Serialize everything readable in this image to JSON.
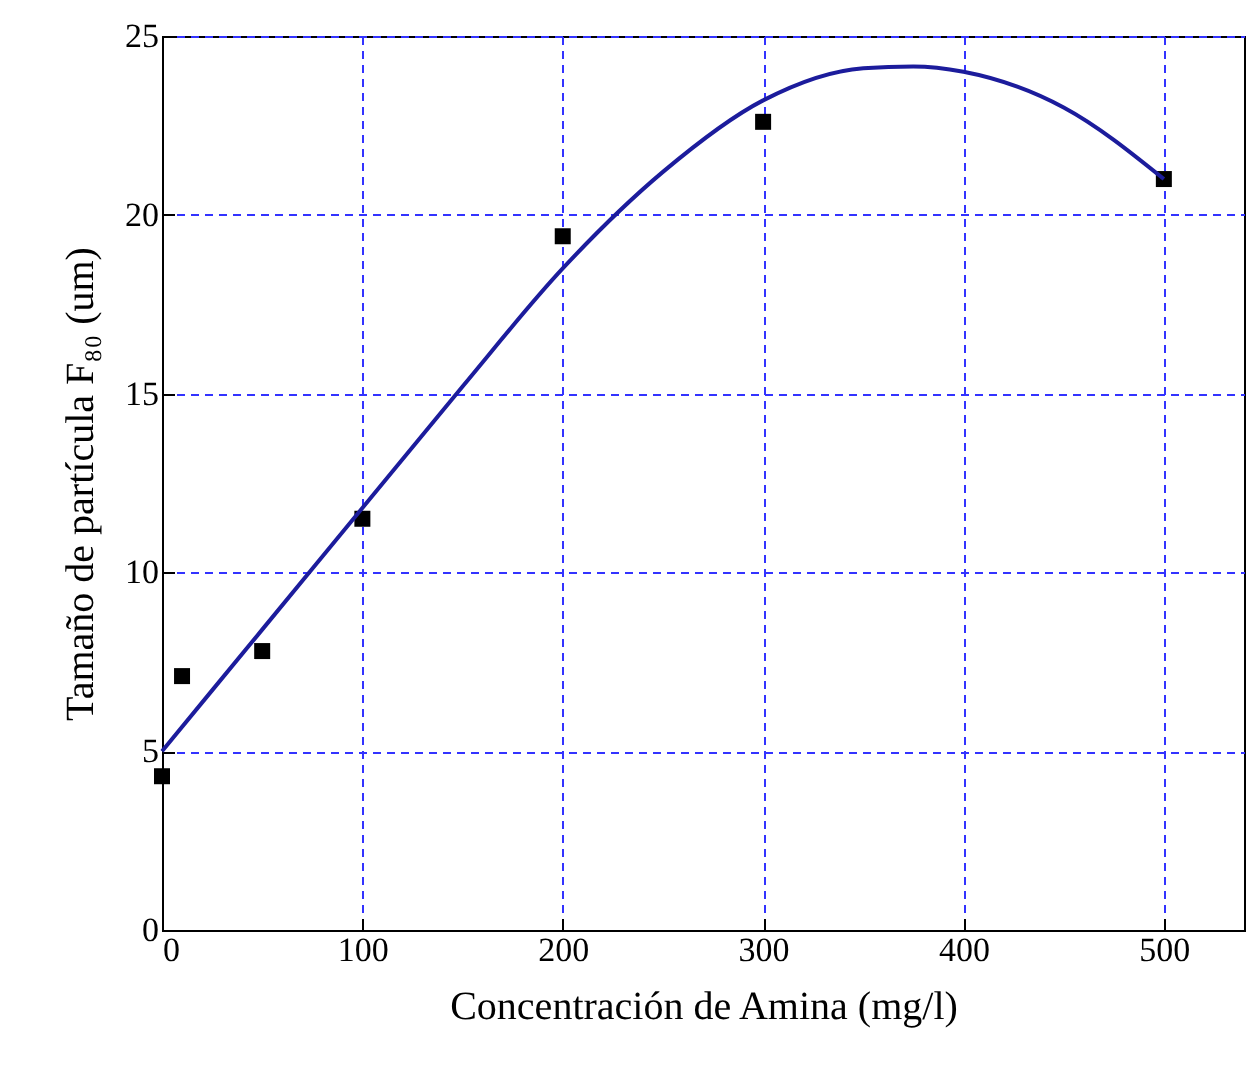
{
  "chart_data": {
    "type": "scatter",
    "xlabel": "Concentración de Amina (mg/l)",
    "ylabel": "Tamaño de partícula F₈₀ (um)",
    "xlim": [
      0,
      540
    ],
    "xticks": [
      0,
      100,
      200,
      300,
      400,
      500
    ],
    "ylim": [
      0,
      25
    ],
    "yticks": [
      0,
      5,
      10,
      15,
      20,
      25
    ],
    "grid": true,
    "series": [
      {
        "color": "#000000",
        "marker": "square",
        "x": [
          0,
          10,
          50,
          100,
          200,
          300,
          500
        ],
        "values": [
          4.3,
          7.1,
          7.8,
          11.5,
          19.4,
          22.6,
          21.0
        ]
      },
      {
        "type": "line",
        "color": "#1c1c9c",
        "marker": "none",
        "x": [
          0,
          50,
          100,
          150,
          200,
          250,
          300,
          350,
          375,
          400,
          450,
          500
        ],
        "values": [
          5.0,
          8.4,
          11.8,
          15.2,
          18.5,
          21.2,
          23.2,
          24.1,
          24.15,
          24.0,
          23.0,
          21.0
        ]
      }
    ]
  }
}
